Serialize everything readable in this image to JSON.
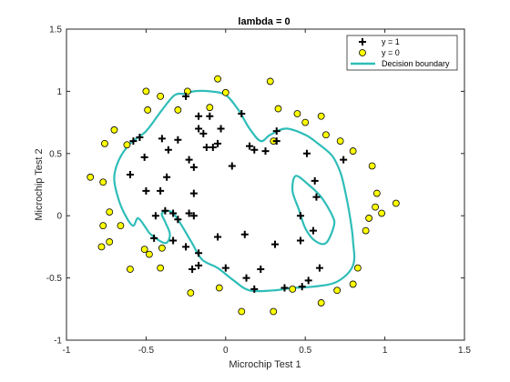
{
  "chart_data": {
    "type": "scatter",
    "title": "lambda = 0",
    "xlabel": "Microchip Test 1",
    "ylabel": "Microchip Test 2",
    "xlim": [
      -1,
      1.5
    ],
    "ylim": [
      -1,
      1.5
    ],
    "xticks": [
      "-1",
      "-0.5",
      "0",
      "0.5",
      "1",
      "1.5"
    ],
    "yticks": [
      "-1",
      "-0.5",
      "0",
      "0.5",
      "1",
      "1.5"
    ],
    "grid": false,
    "legend_placement": "top-right",
    "legend": [
      "y = 1",
      "y = 0",
      "Decision boundary"
    ],
    "colors": {
      "y1": "#000000",
      "y0": "#ffff00",
      "y0_edge": "#000000",
      "boundary": "#2ebdb8"
    },
    "series": [
      {
        "name": "y = 1",
        "marker": "plus",
        "points": [
          [
            -0.25,
            0.96
          ],
          [
            -0.4,
            0.62
          ],
          [
            -0.3,
            0.61
          ],
          [
            -0.17,
            0.7
          ],
          [
            -0.14,
            0.66
          ],
          [
            -0.1,
            0.8
          ],
          [
            -0.17,
            0.8
          ],
          [
            -0.08,
            0.55
          ],
          [
            -0.12,
            0.55
          ],
          [
            -0.03,
            0.7
          ],
          [
            -0.05,
            0.58
          ],
          [
            0.1,
            0.82
          ],
          [
            0.15,
            0.56
          ],
          [
            0.18,
            0.53
          ],
          [
            0.25,
            0.52
          ],
          [
            0.32,
            0.68
          ],
          [
            0.32,
            0.6
          ],
          [
            0.04,
            0.4
          ],
          [
            -0.23,
            0.45
          ],
          [
            -0.2,
            0.39
          ],
          [
            -0.36,
            0.53
          ],
          [
            -0.37,
            0.31
          ],
          [
            -0.51,
            0.47
          ],
          [
            -0.54,
            0.63
          ],
          [
            -0.58,
            0.6
          ],
          [
            -0.6,
            0.33
          ],
          [
            -0.5,
            0.2
          ],
          [
            -0.41,
            0.2
          ],
          [
            -0.2,
            0.18
          ],
          [
            -0.44,
            0.0
          ],
          [
            -0.38,
            0.04
          ],
          [
            -0.33,
            0.02
          ],
          [
            -0.23,
            0.02
          ],
          [
            -0.2,
            0.0
          ],
          [
            -0.3,
            -0.03
          ],
          [
            -0.45,
            -0.18
          ],
          [
            -0.33,
            -0.2
          ],
          [
            -0.25,
            -0.25
          ],
          [
            -0.17,
            -0.3
          ],
          [
            -0.05,
            -0.17
          ],
          [
            0.12,
            -0.15
          ],
          [
            0.0,
            -0.42
          ],
          [
            -0.21,
            -0.43
          ],
          [
            -0.17,
            -0.4
          ],
          [
            0.22,
            -0.43
          ],
          [
            0.13,
            -0.5
          ],
          [
            0.18,
            -0.59
          ],
          [
            0.37,
            -0.58
          ],
          [
            0.48,
            -0.57
          ],
          [
            0.52,
            -0.52
          ],
          [
            0.59,
            -0.42
          ],
          [
            0.47,
            -0.2
          ],
          [
            0.31,
            -0.23
          ],
          [
            0.51,
            0.5
          ],
          [
            0.56,
            0.28
          ],
          [
            0.57,
            0.15
          ],
          [
            0.47,
            0.0
          ],
          [
            0.55,
            -0.12
          ],
          [
            0.74,
            0.45
          ]
        ]
      },
      {
        "name": "y = 0",
        "marker": "circle",
        "points": [
          [
            -0.05,
            1.1
          ],
          [
            0.0,
            0.99
          ],
          [
            0.28,
            1.08
          ],
          [
            -0.24,
            1.0
          ],
          [
            -0.41,
            0.96
          ],
          [
            -0.5,
            1.0
          ],
          [
            -0.49,
            0.85
          ],
          [
            -0.3,
            0.85
          ],
          [
            -0.1,
            0.87
          ],
          [
            -0.7,
            0.69
          ],
          [
            -0.62,
            0.57
          ],
          [
            -0.76,
            0.58
          ],
          [
            -0.85,
            0.31
          ],
          [
            -0.77,
            0.27
          ],
          [
            -0.73,
            0.03
          ],
          [
            -0.77,
            -0.08
          ],
          [
            -0.73,
            -0.21
          ],
          [
            -0.78,
            -0.25
          ],
          [
            -0.66,
            -0.08
          ],
          [
            -0.6,
            -0.43
          ],
          [
            -0.51,
            -0.27
          ],
          [
            -0.48,
            -0.31
          ],
          [
            -0.4,
            -0.26
          ],
          [
            -0.41,
            -0.42
          ],
          [
            -0.22,
            -0.62
          ],
          [
            -0.04,
            -0.58
          ],
          [
            0.1,
            -0.77
          ],
          [
            0.3,
            -0.77
          ],
          [
            0.42,
            -0.59
          ],
          [
            0.6,
            -0.7
          ],
          [
            0.7,
            -0.6
          ],
          [
            0.8,
            -0.55
          ],
          [
            0.83,
            -0.42
          ],
          [
            0.88,
            -0.12
          ],
          [
            0.9,
            -0.02
          ],
          [
            0.94,
            0.07
          ],
          [
            1.07,
            0.1
          ],
          [
            0.98,
            0.02
          ],
          [
            0.95,
            0.18
          ],
          [
            0.92,
            0.4
          ],
          [
            0.8,
            0.52
          ],
          [
            0.72,
            0.6
          ],
          [
            0.63,
            0.65
          ],
          [
            0.6,
            0.8
          ],
          [
            0.45,
            0.82
          ],
          [
            0.5,
            0.75
          ],
          [
            0.33,
            0.86
          ],
          [
            0.3,
            0.6
          ]
        ]
      },
      {
        "name": "Decision boundary",
        "marker": "line",
        "points": [
          [
            -0.25,
            0.98
          ],
          [
            -0.32,
            0.97
          ],
          [
            -0.4,
            0.85
          ],
          [
            -0.5,
            0.68
          ],
          [
            -0.6,
            0.58
          ],
          [
            -0.67,
            0.45
          ],
          [
            -0.7,
            0.3
          ],
          [
            -0.67,
            0.12
          ],
          [
            -0.62,
            -0.02
          ],
          [
            -0.58,
            -0.08
          ],
          [
            -0.55,
            -0.02
          ],
          [
            -0.5,
            -0.1
          ],
          [
            -0.47,
            -0.15
          ],
          [
            -0.38,
            -0.22
          ],
          [
            -0.35,
            -0.15
          ],
          [
            -0.38,
            -0.05
          ],
          [
            -0.4,
            0.02
          ],
          [
            -0.33,
            0.02
          ],
          [
            -0.22,
            -0.2
          ],
          [
            -0.15,
            -0.35
          ],
          [
            -0.05,
            -0.42
          ],
          [
            0.05,
            -0.52
          ],
          [
            0.15,
            -0.6
          ],
          [
            0.3,
            -0.6
          ],
          [
            0.42,
            -0.58
          ],
          [
            0.55,
            -0.57
          ],
          [
            0.7,
            -0.53
          ],
          [
            0.8,
            -0.4
          ],
          [
            0.8,
            -0.2
          ],
          [
            0.78,
            0.0
          ],
          [
            0.75,
            0.2
          ],
          [
            0.72,
            0.35
          ],
          [
            0.67,
            0.48
          ],
          [
            0.58,
            0.58
          ],
          [
            0.5,
            0.65
          ],
          [
            0.38,
            0.7
          ],
          [
            0.28,
            0.65
          ],
          [
            0.22,
            0.6
          ],
          [
            0.15,
            0.7
          ],
          [
            0.08,
            0.85
          ],
          [
            0.0,
            0.97
          ],
          [
            -0.1,
            1.0
          ],
          [
            -0.2,
            1.0
          ],
          [
            -0.25,
            0.98
          ]
        ],
        "extra_closed_loops": [
          [
            [
              0.44,
              0.32
            ],
            [
              0.52,
              0.25
            ],
            [
              0.6,
              0.15
            ],
            [
              0.67,
              0.0
            ],
            [
              0.68,
              -0.08
            ],
            [
              0.63,
              -0.22
            ],
            [
              0.56,
              -0.2
            ],
            [
              0.5,
              -0.1
            ],
            [
              0.46,
              0.05
            ],
            [
              0.42,
              0.2
            ],
            [
              0.44,
              0.32
            ]
          ]
        ]
      }
    ]
  }
}
